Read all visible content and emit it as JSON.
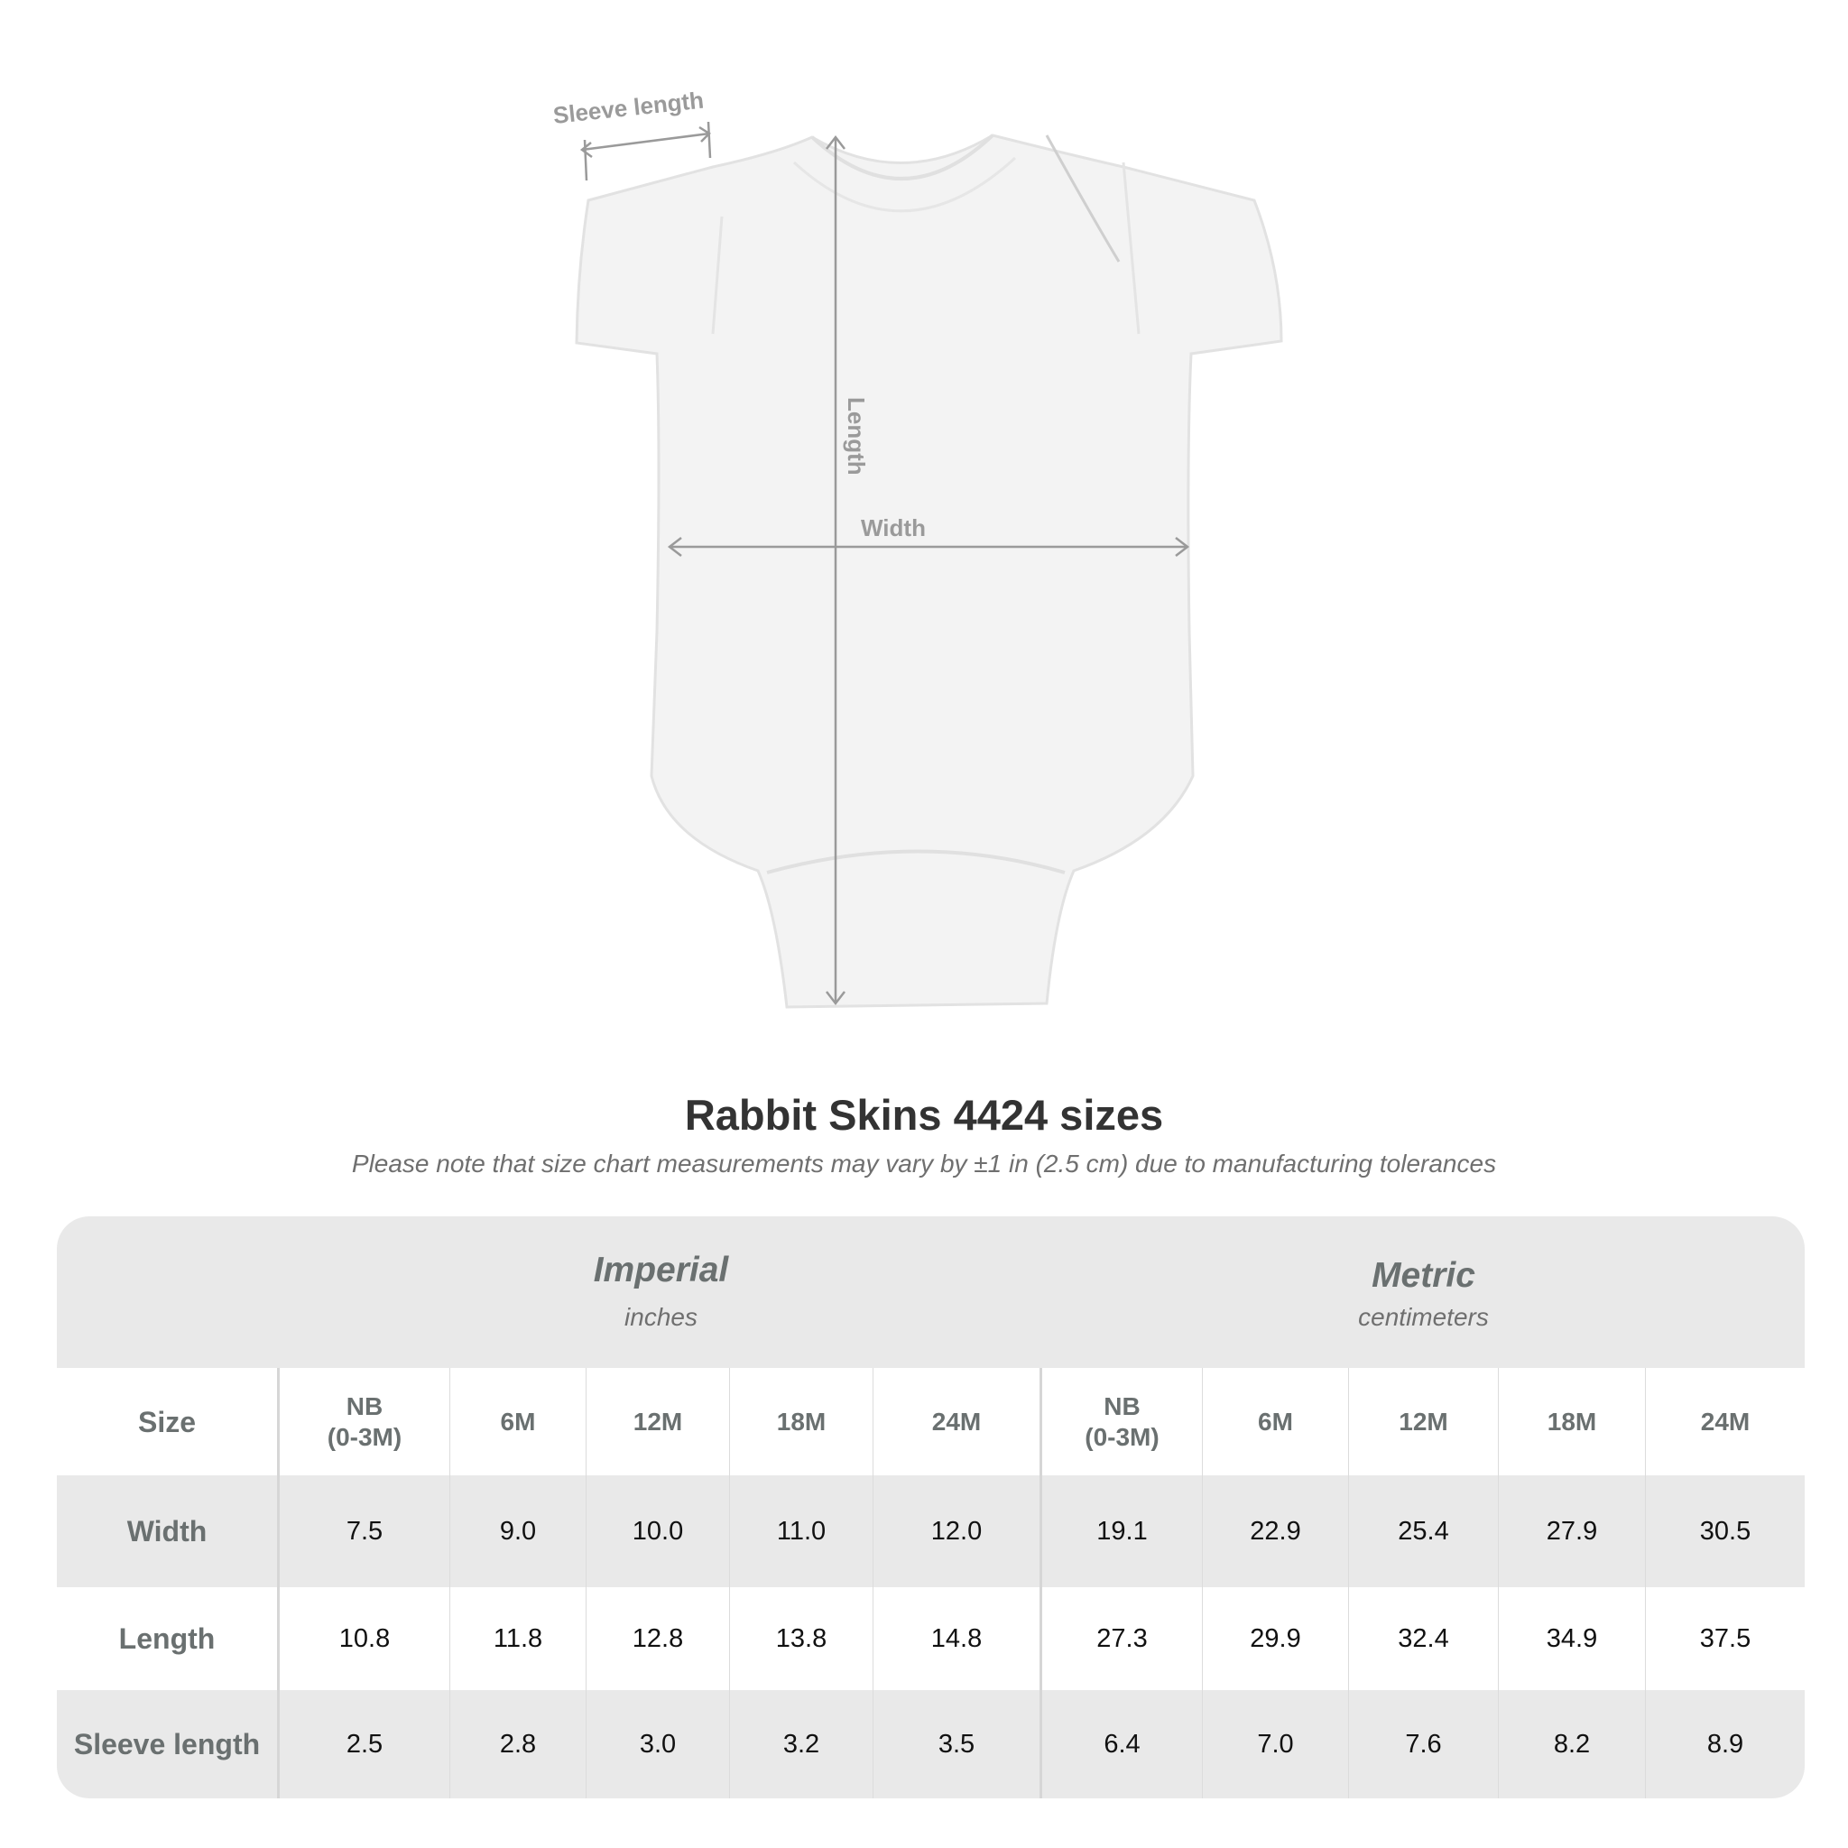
{
  "diagram": {
    "labels": {
      "sleeve_length": "Sleeve length",
      "length": "Length",
      "width": "Width"
    },
    "garment_color": "#f2f2f2",
    "arrow_color": "#9a9a9a"
  },
  "title": "Rabbit Skins 4424 sizes",
  "subtitle": "Please note that size chart measurements may vary by ±1 in (2.5 cm) due to manufacturing tolerances",
  "table": {
    "groups": [
      {
        "name": "Imperial",
        "unit": "inches"
      },
      {
        "name": "Metric",
        "unit": "centimeters"
      }
    ],
    "size_label": "Size",
    "sizes": [
      "NB\n(0-3M)",
      "6M",
      "12M",
      "18M",
      "24M"
    ],
    "rows": [
      {
        "label": "Width",
        "imperial": [
          "7.5",
          "9.0",
          "10.0",
          "11.0",
          "12.0"
        ],
        "metric": [
          "19.1",
          "22.9",
          "25.4",
          "27.9",
          "30.5"
        ]
      },
      {
        "label": "Length",
        "imperial": [
          "10.8",
          "11.8",
          "12.8",
          "13.8",
          "14.8"
        ],
        "metric": [
          "27.3",
          "29.9",
          "32.4",
          "34.9",
          "37.5"
        ]
      },
      {
        "label": "Sleeve length",
        "imperial": [
          "2.5",
          "2.8",
          "3.0",
          "3.2",
          "3.5"
        ],
        "metric": [
          "6.4",
          "7.0",
          "7.6",
          "8.2",
          "8.9"
        ]
      }
    ]
  }
}
